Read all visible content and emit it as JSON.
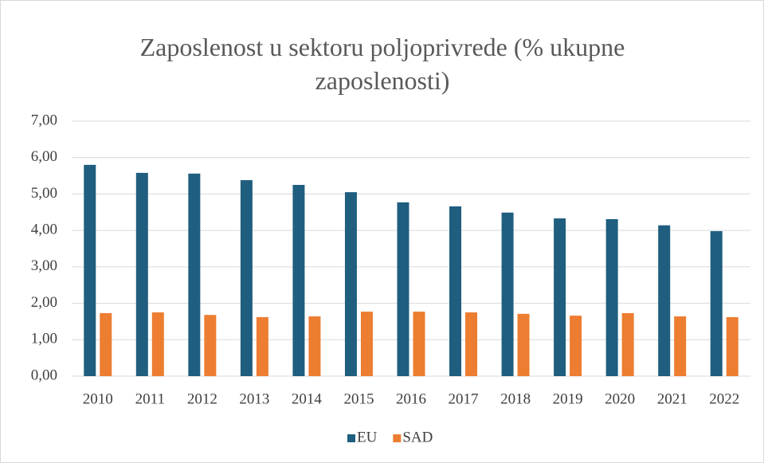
{
  "chart_data": {
    "type": "bar",
    "title": "Zaposlenost u sektoru poljoprivrede (% ukupne zaposlenosti)",
    "categories": [
      "2010",
      "2011",
      "2012",
      "2013",
      "2014",
      "2015",
      "2016",
      "2017",
      "2018",
      "2019",
      "2020",
      "2021",
      "2022"
    ],
    "series": [
      {
        "name": "EU",
        "color": "#1f5e7f",
        "values": [
          5.8,
          5.58,
          5.56,
          5.38,
          5.25,
          5.05,
          4.77,
          4.66,
          4.49,
          4.33,
          4.31,
          4.14,
          3.98
        ]
      },
      {
        "name": "SAD",
        "color": "#ed7d31",
        "values": [
          1.73,
          1.75,
          1.68,
          1.62,
          1.64,
          1.77,
          1.77,
          1.75,
          1.71,
          1.66,
          1.73,
          1.64,
          1.62
        ]
      }
    ],
    "ylim": [
      0,
      7
    ],
    "yticks": [
      {
        "value": 0,
        "label": "0,00"
      },
      {
        "value": 1,
        "label": "1,00"
      },
      {
        "value": 2,
        "label": "2,00"
      },
      {
        "value": 3,
        "label": "3,00"
      },
      {
        "value": 4,
        "label": "4,00"
      },
      {
        "value": 5,
        "label": "5,00"
      },
      {
        "value": 6,
        "label": "6,00"
      },
      {
        "value": 7,
        "label": "7,00"
      }
    ],
    "grid": true,
    "legend": "bottom"
  }
}
